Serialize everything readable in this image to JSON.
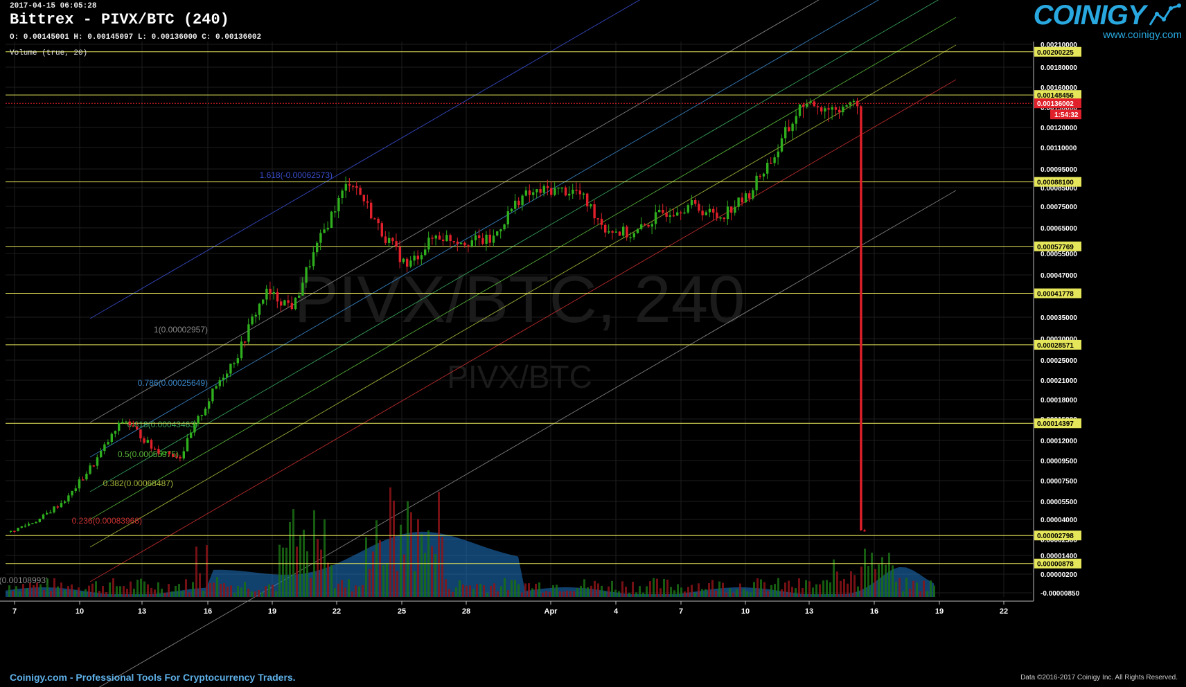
{
  "header": {
    "timestamp": "2017-04-15 06:05:28",
    "title": "Bittrex - PIVX/BTC (240)",
    "ohlc": "O: 0.00145001 H: 0.00145097 L: 0.00136000 C: 0.00136002",
    "volume_label": "Volume (true, 20)"
  },
  "logo": {
    "word": "COINIGY",
    "url": "www.coinigy.com"
  },
  "watermark": {
    "big": "PIVX/BTC, 240",
    "small": "PIVX/BTC"
  },
  "footer": {
    "left": "Coinigy.com - Professional Tools For Cryptocurrency Traders.",
    "right": "Data ©2016-2017 Coinigy Inc. All Rights Reserved."
  },
  "colors": {
    "background": "#000000",
    "grid": "#1e1e1e",
    "up": "#2fae1e",
    "down": "#e0202a",
    "hline": "#e6e65a",
    "current_price": "#e0202a",
    "volume_area": "#1f78c8"
  },
  "chart_data": {
    "type": "candlestick",
    "x_ticks": [
      "7",
      "10",
      "13",
      "16",
      "19",
      "22",
      "25",
      "28",
      "Apr",
      "4",
      "7",
      "10",
      "13",
      "16",
      "19",
      "22"
    ],
    "y_ticks": [
      "0.00210000",
      "0.00180000",
      "0.00160000",
      "0.00130000",
      "0.00120000",
      "0.00110000",
      "0.00095000",
      "0.00085000",
      "0.00075000",
      "0.00065000",
      "0.00055000",
      "0.00047000",
      "0.00035000",
      "0.00030000",
      "0.00025000",
      "0.00021000",
      "0.00018000",
      "0.00015000",
      "0.00012000",
      "0.00009500",
      "0.00007500",
      "0.00005500",
      "0.00004000",
      "0.00002500",
      "0.00001400",
      "0.00000200",
      "-0.00000850"
    ],
    "horizontal_levels": [
      "0.00200225",
      "0.00148456",
      "0.00088100",
      "0.00057769",
      "0.00041778",
      "0.00028571",
      "0.00014397",
      "0.00002798",
      "0.00000878"
    ],
    "current_price": "0.00136002",
    "countdown": "1:54:32",
    "fib_channel": [
      {
        "label": "1.618(-0.00062573)",
        "color": "#3a4fd0"
      },
      {
        "label": "1(0.00002957)",
        "color": "#8a8a8a"
      },
      {
        "label": "0.786(0.00025649)",
        "color": "#3a86c8"
      },
      {
        "label": "0.618(0.00043463)",
        "color": "#3aa860"
      },
      {
        "label": "0.5(0.00055975)",
        "color": "#5ab83a"
      },
      {
        "label": "0.382(0.00068487)",
        "color": "#a8b83a"
      },
      {
        "label": "0.236(0.00083968)",
        "color": "#c83030"
      },
      {
        "label": "0(0.00108993)",
        "color": "#8a8a8a"
      }
    ],
    "price_path": [
      [
        "7",
        3.1e-05
      ],
      [
        "10",
        4e-05
      ],
      [
        "13",
        5.8e-05
      ],
      [
        "14.5",
        9.5e-05
      ],
      [
        "15.5",
        0.00015
      ],
      [
        "16.5",
        0.00011
      ],
      [
        "17.5",
        0.0001
      ],
      [
        "18.5",
        0.00018
      ],
      [
        "19.5",
        0.00026
      ],
      [
        "20",
        0.00042
      ],
      [
        "21",
        0.00038
      ],
      [
        "22",
        0.00062
      ],
      [
        "23",
        0.0009
      ],
      [
        "24",
        0.00065
      ],
      [
        "25",
        0.0005
      ],
      [
        "26",
        0.00062
      ],
      [
        "28",
        0.0006
      ],
      [
        "30",
        0.0006
      ],
      [
        "31",
        0.0008
      ],
      [
        "Apr 1",
        0.00084
      ],
      [
        "Apr 2",
        0.00083
      ],
      [
        "Apr 3",
        0.00065
      ],
      [
        "Apr 5",
        0.00062
      ],
      [
        "Apr 7",
        0.00072
      ],
      [
        "Apr 8",
        0.00076
      ],
      [
        "Apr 10",
        0.0007
      ],
      [
        "Apr 11",
        0.0008
      ],
      [
        "Apr 12",
        0.00105
      ],
      [
        "Apr 13",
        0.00135
      ],
      [
        "Apr 14",
        0.0013
      ],
      [
        "Apr 15",
        0.00136
      ]
    ]
  }
}
